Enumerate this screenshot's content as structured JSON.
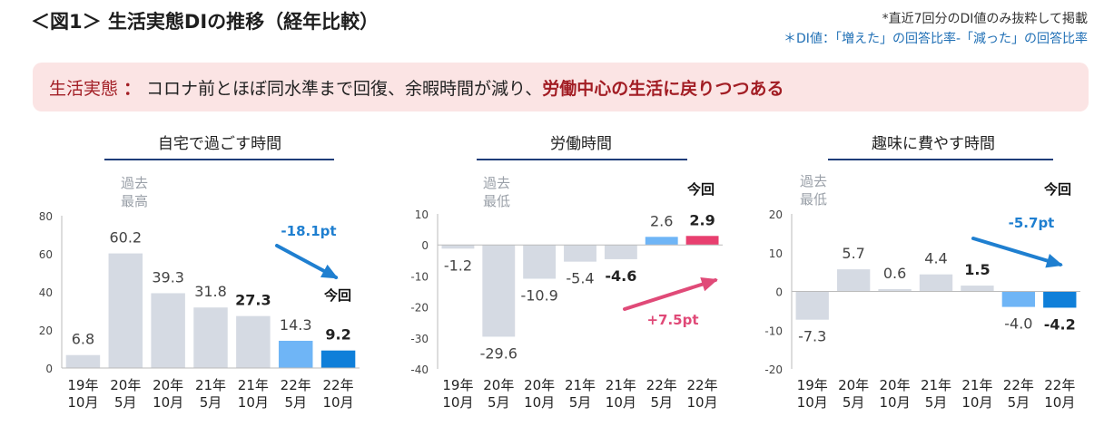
{
  "header": {
    "title": "＜図1＞ 生活実態DIの推移（経年比較）",
    "note_line1": "*直近7回分のDI値のみ抜粋して掲載",
    "note_line2": "＊DI値：「増えた」の回答比率-「減った」の回答比率"
  },
  "banner": {
    "label": "生活実態",
    "separator": "：",
    "body": "コロナ前とほぼ同水準まで回復、余暇時間が減り、",
    "emphasis": "労働中心の生活に戻りつつある"
  },
  "colors": {
    "past_bar": "#d5dae3",
    "prev_bar": "#6fb5f6",
    "blue_current": "#0f7fd9",
    "pink_current": "#e83f6f",
    "blue_arrow": "#1f7fd0",
    "pink_arrow": "#e04a78",
    "title_line": "#1f3d7a",
    "axis_gray": "#bbbbbb"
  },
  "chart_data": [
    {
      "type": "bar",
      "title": "自宅で過ごす時間",
      "categories": [
        "19年 10月",
        "20年 5月",
        "20年 10月",
        "21年 5月",
        "21年 10月",
        "22年 5月",
        "22年 10月"
      ],
      "values": [
        6.8,
        60.2,
        39.3,
        31.8,
        27.3,
        14.3,
        9.2
      ],
      "value_labels": [
        "6.8",
        "60.2",
        "39.3",
        "31.8",
        "27.3",
        "14.3",
        "9.2"
      ],
      "bold_labels": [
        false,
        false,
        false,
        false,
        true,
        false,
        true
      ],
      "ylim": [
        0,
        80
      ],
      "yticks": [
        0,
        20,
        40,
        60,
        80
      ],
      "grid": false,
      "annotations": {
        "past": "過去 最高",
        "current": "今回",
        "change": "-18.1pt"
      }
    },
    {
      "type": "bar",
      "title": "労働時間",
      "categories": [
        "19年 10月",
        "20年 5月",
        "20年 10月",
        "21年 5月",
        "21年 10月",
        "22年 5月",
        "22年 10月"
      ],
      "values": [
        -1.2,
        -29.6,
        -10.9,
        -5.4,
        -4.6,
        2.6,
        2.9
      ],
      "value_labels": [
        "-1.2",
        "-29.6",
        "-10.9",
        "-5.4",
        "-4.6",
        "2.6",
        "2.9"
      ],
      "bold_labels": [
        false,
        false,
        false,
        false,
        true,
        false,
        true
      ],
      "ylim": [
        -40,
        10
      ],
      "yticks": [
        -40,
        -30,
        -20,
        -10,
        0,
        10
      ],
      "grid": false,
      "annotations": {
        "past": "過去 最低",
        "current": "今回",
        "change": "+7.5pt"
      }
    },
    {
      "type": "bar",
      "title": "趣味に費やす時間",
      "categories": [
        "19年 10月",
        "20年 5月",
        "20年 10月",
        "21年 5月",
        "21年 10月",
        "22年 5月",
        "22年 10月"
      ],
      "values": [
        -7.3,
        5.7,
        0.6,
        4.4,
        1.5,
        -4.0,
        -4.2
      ],
      "value_labels": [
        "-7.3",
        "5.7",
        "0.6",
        "4.4",
        "1.5",
        "-4.0",
        "-4.2"
      ],
      "bold_labels": [
        false,
        false,
        false,
        false,
        true,
        false,
        true
      ],
      "ylim": [
        -20,
        20
      ],
      "yticks": [
        -20,
        -10,
        0,
        10,
        20
      ],
      "grid": false,
      "annotations": {
        "past": "過去 最低",
        "current": "今回",
        "change": "-5.7pt"
      }
    }
  ]
}
